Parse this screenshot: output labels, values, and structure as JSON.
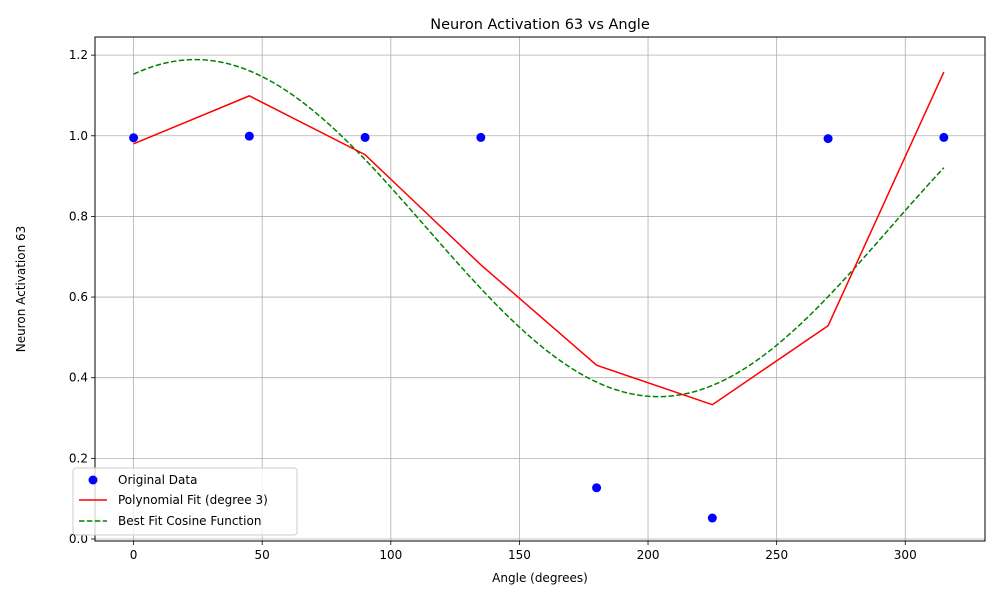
{
  "chart_data": {
    "type": "scatter",
    "title": "Neuron Activation 63 vs Angle",
    "xlabel": "Angle (degrees)",
    "ylabel": "Neuron Activation 63",
    "xlim": [
      -15,
      331
    ],
    "ylim": [
      -0.005,
      1.245
    ],
    "x_ticks": [
      0,
      50,
      100,
      150,
      200,
      250,
      300
    ],
    "y_ticks": [
      0.0,
      0.2,
      0.4,
      0.6,
      0.8,
      1.0,
      1.2
    ],
    "x_tick_labels": [
      "0",
      "50",
      "100",
      "150",
      "200",
      "250",
      "300"
    ],
    "y_tick_labels": [
      "0.0",
      "0.2",
      "0.4",
      "0.6",
      "0.8",
      "1.0",
      "1.2"
    ],
    "grid": true,
    "legend_position": "lower-left",
    "series": [
      {
        "name": "Original Data",
        "kind": "scatter",
        "color": "#0000ff",
        "x": [
          0,
          45,
          90,
          135,
          180,
          225,
          270,
          315
        ],
        "y": [
          0.995,
          0.999,
          0.996,
          0.996,
          0.127,
          0.052,
          0.993,
          0.996
        ]
      },
      {
        "name": "Polynomial Fit (degree 3)",
        "kind": "line",
        "style": "solid",
        "color": "#ff0000",
        "x": [
          0,
          45,
          90,
          135,
          180,
          225,
          270,
          315
        ],
        "y": [
          0.98,
          1.099,
          0.953,
          0.68,
          0.431,
          0.333,
          0.529,
          1.158
        ]
      },
      {
        "name": "Best Fit Cosine Function",
        "kind": "line",
        "style": "dashed",
        "color": "#008000",
        "function": {
          "amplitude": 0.418,
          "period": 360,
          "phase_deg": 24,
          "offset": 0.771
        },
        "x_range": [
          0,
          315
        ]
      }
    ]
  }
}
